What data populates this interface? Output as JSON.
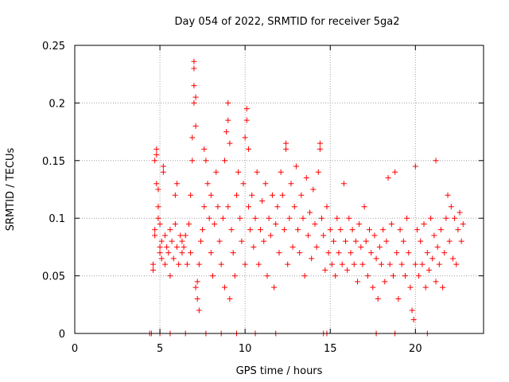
{
  "chart_data": {
    "type": "scatter",
    "title": "Day 054 of 2022, SRMTID for receiver 5ga2",
    "xlabel": "GPS time / hours",
    "ylabel": "SRMTID / TECUs",
    "xlim": [
      0,
      24
    ],
    "ylim": [
      0,
      0.25
    ],
    "xticks": [
      0,
      5,
      10,
      15,
      20
    ],
    "xtick_labels": [
      "0",
      "5",
      "10",
      "15",
      "20"
    ],
    "yticks": [
      0,
      0.05,
      0.1,
      0.15,
      0.2,
      0.25
    ],
    "ytick_labels": [
      "0",
      "0.05",
      "0.1",
      "0.15",
      "0.2",
      "0.25"
    ],
    "grid": true,
    "marker": "+",
    "color": "#ff0000",
    "zero_points_x": [
      4.4,
      4.5,
      5.0,
      5.6,
      6.5,
      7.7,
      8.6,
      9.5,
      10.6,
      11.8,
      14.6,
      14.8,
      17.7,
      18.8,
      20.7
    ],
    "points": [
      [
        4.6,
        0.055
      ],
      [
        4.6,
        0.06
      ],
      [
        4.7,
        0.085
      ],
      [
        4.7,
        0.09
      ],
      [
        4.7,
        0.15
      ],
      [
        4.8,
        0.155
      ],
      [
        4.8,
        0.16
      ],
      [
        4.8,
        0.13
      ],
      [
        4.9,
        0.125
      ],
      [
        4.9,
        0.11
      ],
      [
        4.9,
        0.1
      ],
      [
        5.0,
        0.095
      ],
      [
        5.0,
        0.075
      ],
      [
        5.0,
        0.07
      ],
      [
        5.1,
        0.08
      ],
      [
        5.1,
        0.065
      ],
      [
        5.2,
        0.14
      ],
      [
        5.2,
        0.145
      ],
      [
        5.3,
        0.085
      ],
      [
        5.3,
        0.06
      ],
      [
        5.4,
        0.075
      ],
      [
        5.5,
        0.07
      ],
      [
        5.6,
        0.09
      ],
      [
        5.6,
        0.05
      ],
      [
        5.7,
        0.08
      ],
      [
        5.8,
        0.065
      ],
      [
        5.9,
        0.12
      ],
      [
        5.9,
        0.095
      ],
      [
        6.0,
        0.075
      ],
      [
        6.0,
        0.13
      ],
      [
        6.1,
        0.06
      ],
      [
        6.2,
        0.085
      ],
      [
        6.3,
        0.08
      ],
      [
        6.3,
        0.07
      ],
      [
        6.4,
        0.075
      ],
      [
        6.5,
        0.085
      ],
      [
        6.6,
        0.06
      ],
      [
        6.7,
        0.095
      ],
      [
        6.8,
        0.07
      ],
      [
        6.8,
        0.12
      ],
      [
        6.9,
        0.15
      ],
      [
        6.9,
        0.17
      ],
      [
        7.0,
        0.2
      ],
      [
        7.0,
        0.215
      ],
      [
        7.0,
        0.23
      ],
      [
        7.0,
        0.236
      ],
      [
        7.1,
        0.205
      ],
      [
        7.1,
        0.18
      ],
      [
        7.1,
        0.04
      ],
      [
        7.2,
        0.03
      ],
      [
        7.2,
        0.045
      ],
      [
        7.3,
        0.02
      ],
      [
        7.3,
        0.06
      ],
      [
        7.4,
        0.08
      ],
      [
        7.5,
        0.09
      ],
      [
        7.6,
        0.16
      ],
      [
        7.6,
        0.11
      ],
      [
        7.7,
        0.15
      ],
      [
        7.8,
        0.13
      ],
      [
        7.9,
        0.1
      ],
      [
        8.0,
        0.07
      ],
      [
        8.0,
        0.12
      ],
      [
        8.1,
        0.05
      ],
      [
        8.2,
        0.095
      ],
      [
        8.3,
        0.14
      ],
      [
        8.4,
        0.11
      ],
      [
        8.5,
        0.08
      ],
      [
        8.6,
        0.06
      ],
      [
        8.7,
        0.1
      ],
      [
        8.8,
        0.15
      ],
      [
        8.8,
        0.04
      ],
      [
        8.9,
        0.175
      ],
      [
        9.0,
        0.2
      ],
      [
        9.0,
        0.185
      ],
      [
        9.0,
        0.11
      ],
      [
        9.1,
        0.165
      ],
      [
        9.1,
        0.03
      ],
      [
        9.2,
        0.09
      ],
      [
        9.3,
        0.07
      ],
      [
        9.4,
        0.05
      ],
      [
        9.5,
        0.12
      ],
      [
        9.6,
        0.14
      ],
      [
        9.7,
        0.1
      ],
      [
        9.8,
        0.08
      ],
      [
        9.9,
        0.13
      ],
      [
        10.0,
        0.17
      ],
      [
        10.0,
        0.06
      ],
      [
        10.1,
        0.195
      ],
      [
        10.1,
        0.185
      ],
      [
        10.2,
        0.16
      ],
      [
        10.2,
        0.11
      ],
      [
        10.3,
        0.09
      ],
      [
        10.4,
        0.12
      ],
      [
        10.5,
        0.075
      ],
      [
        10.6,
        0.1
      ],
      [
        10.7,
        0.14
      ],
      [
        10.8,
        0.06
      ],
      [
        10.9,
        0.09
      ],
      [
        11.0,
        0.115
      ],
      [
        11.1,
        0.08
      ],
      [
        11.2,
        0.13
      ],
      [
        11.3,
        0.05
      ],
      [
        11.4,
        0.1
      ],
      [
        11.5,
        0.085
      ],
      [
        11.6,
        0.12
      ],
      [
        11.7,
        0.04
      ],
      [
        11.8,
        0.095
      ],
      [
        11.9,
        0.11
      ],
      [
        12.0,
        0.07
      ],
      [
        12.1,
        0.14
      ],
      [
        12.2,
        0.12
      ],
      [
        12.3,
        0.09
      ],
      [
        12.4,
        0.165
      ],
      [
        12.4,
        0.16
      ],
      [
        12.5,
        0.06
      ],
      [
        12.6,
        0.1
      ],
      [
        12.7,
        0.13
      ],
      [
        12.8,
        0.075
      ],
      [
        12.9,
        0.11
      ],
      [
        13.0,
        0.145
      ],
      [
        13.1,
        0.09
      ],
      [
        13.2,
        0.07
      ],
      [
        13.3,
        0.12
      ],
      [
        13.4,
        0.1
      ],
      [
        13.5,
        0.05
      ],
      [
        13.6,
        0.135
      ],
      [
        13.7,
        0.085
      ],
      [
        13.8,
        0.105
      ],
      [
        13.9,
        0.065
      ],
      [
        14.0,
        0.125
      ],
      [
        14.1,
        0.095
      ],
      [
        14.2,
        0.075
      ],
      [
        14.3,
        0.14
      ],
      [
        14.4,
        0.165
      ],
      [
        14.4,
        0.16
      ],
      [
        14.5,
        0.1
      ],
      [
        14.6,
        0.085
      ],
      [
        14.7,
        0.055
      ],
      [
        14.8,
        0.11
      ],
      [
        14.9,
        0.07
      ],
      [
        15.0,
        0.09
      ],
      [
        15.1,
        0.06
      ],
      [
        15.2,
        0.08
      ],
      [
        15.3,
        0.05
      ],
      [
        15.4,
        0.1
      ],
      [
        15.5,
        0.07
      ],
      [
        15.6,
        0.09
      ],
      [
        15.7,
        0.06
      ],
      [
        15.8,
        0.13
      ],
      [
        15.9,
        0.08
      ],
      [
        16.0,
        0.055
      ],
      [
        16.1,
        0.1
      ],
      [
        16.2,
        0.07
      ],
      [
        16.3,
        0.09
      ],
      [
        16.4,
        0.06
      ],
      [
        16.5,
        0.08
      ],
      [
        16.6,
        0.045
      ],
      [
        16.7,
        0.095
      ],
      [
        16.8,
        0.075
      ],
      [
        16.9,
        0.06
      ],
      [
        17.0,
        0.11
      ],
      [
        17.1,
        0.08
      ],
      [
        17.2,
        0.05
      ],
      [
        17.3,
        0.09
      ],
      [
        17.4,
        0.07
      ],
      [
        17.5,
        0.04
      ],
      [
        17.6,
        0.085
      ],
      [
        17.7,
        0.065
      ],
      [
        17.8,
        0.03
      ],
      [
        17.9,
        0.075
      ],
      [
        18.0,
        0.06
      ],
      [
        18.1,
        0.09
      ],
      [
        18.2,
        0.045
      ],
      [
        18.3,
        0.08
      ],
      [
        18.4,
        0.135
      ],
      [
        18.5,
        0.06
      ],
      [
        18.6,
        0.095
      ],
      [
        18.7,
        0.05
      ],
      [
        18.8,
        0.14
      ],
      [
        18.9,
        0.07
      ],
      [
        19.0,
        0.03
      ],
      [
        19.1,
        0.09
      ],
      [
        19.2,
        0.06
      ],
      [
        19.3,
        0.08
      ],
      [
        19.4,
        0.05
      ],
      [
        19.5,
        0.1
      ],
      [
        19.6,
        0.07
      ],
      [
        19.7,
        0.04
      ],
      [
        19.8,
        0.02
      ],
      [
        19.9,
        0.012
      ],
      [
        20.0,
        0.06
      ],
      [
        20.0,
        0.145
      ],
      [
        20.1,
        0.09
      ],
      [
        20.2,
        0.05
      ],
      [
        20.3,
        0.08
      ],
      [
        20.4,
        0.06
      ],
      [
        20.5,
        0.095
      ],
      [
        20.6,
        0.04
      ],
      [
        20.7,
        0.07
      ],
      [
        20.8,
        0.055
      ],
      [
        20.9,
        0.1
      ],
      [
        21.0,
        0.065
      ],
      [
        21.1,
        0.085
      ],
      [
        21.2,
        0.15
      ],
      [
        21.2,
        0.045
      ],
      [
        21.3,
        0.075
      ],
      [
        21.4,
        0.06
      ],
      [
        21.5,
        0.09
      ],
      [
        21.6,
        0.04
      ],
      [
        21.7,
        0.07
      ],
      [
        21.8,
        0.1
      ],
      [
        21.9,
        0.12
      ],
      [
        22.0,
        0.08
      ],
      [
        22.1,
        0.11
      ],
      [
        22.2,
        0.065
      ],
      [
        22.3,
        0.1
      ],
      [
        22.4,
        0.06
      ],
      [
        22.5,
        0.09
      ],
      [
        22.6,
        0.105
      ],
      [
        22.7,
        0.08
      ],
      [
        22.8,
        0.095
      ]
    ]
  }
}
